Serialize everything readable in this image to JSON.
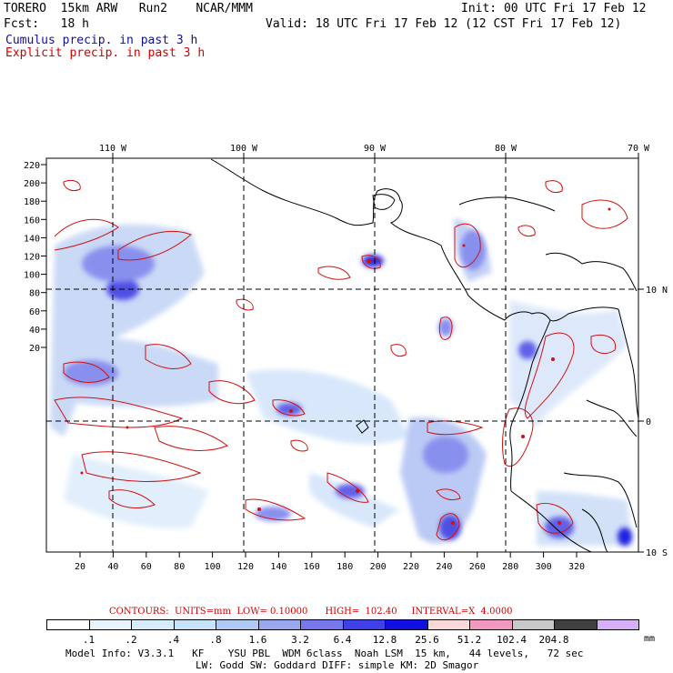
{
  "header": {
    "model_line": "TORERO  15km ARW   Run2    NCAR/MMM",
    "fcst_line": "Fcst:   18 h",
    "init_line": "Init: 00 UTC Fri 17 Feb 12",
    "valid_line": "Valid: 18 UTC Fri 17 Feb 12 (12 CST Fri 17 Feb 12)",
    "cumulus_label": "Cumulus precip. in past 3 h",
    "explicit_label": "Explicit precip. in past 3 h",
    "cumulus_color": "#1010a0",
    "explicit_color": "#d00000"
  },
  "map": {
    "lon_labels": [
      "110 W",
      "100 W",
      "90 W",
      "80 W",
      "70 W"
    ],
    "lat_labels": [
      "10 N",
      "0",
      "10 S"
    ],
    "y_ticks": [
      "220",
      "200",
      "180",
      "160",
      "140",
      "120",
      "100",
      "80",
      "60",
      "40",
      "20"
    ],
    "x_ticks": [
      "20",
      "40",
      "60",
      "80",
      "100",
      "120",
      "140",
      "160",
      "180",
      "200",
      "220",
      "240",
      "260",
      "280",
      "300",
      "320"
    ]
  },
  "contour_info": "CONTOURS:  UNITS=mm  LOW= 0.10000      HIGH=  102.40     INTERVAL=X  4.0000",
  "colorbar": {
    "levels": [
      ".1",
      ".2",
      ".4",
      ".8",
      "1.6",
      "3.2",
      "6.4",
      "12.8",
      "25.6",
      "51.2",
      "102.4",
      "204.8"
    ],
    "unit": "mm",
    "colors": [
      "#ffffff",
      "#e8f4fc",
      "#d6ecfa",
      "#c8e2f8",
      "#b0c8f4",
      "#9aa8f0",
      "#7878ec",
      "#4040e8",
      "#1010e0",
      "#f8d8d8",
      "#f098c0",
      "#c8c8c8",
      "#404040",
      "#d8b0f8"
    ]
  },
  "footer": {
    "line1": "Model Info: V3.3.1   KF    YSU PBL  WDM 6class  Noah LSM  15 km,   44 levels,   72 sec",
    "line2": "LW: Godd SW: Goddard DIFF: simple KM: 2D Smagor"
  }
}
